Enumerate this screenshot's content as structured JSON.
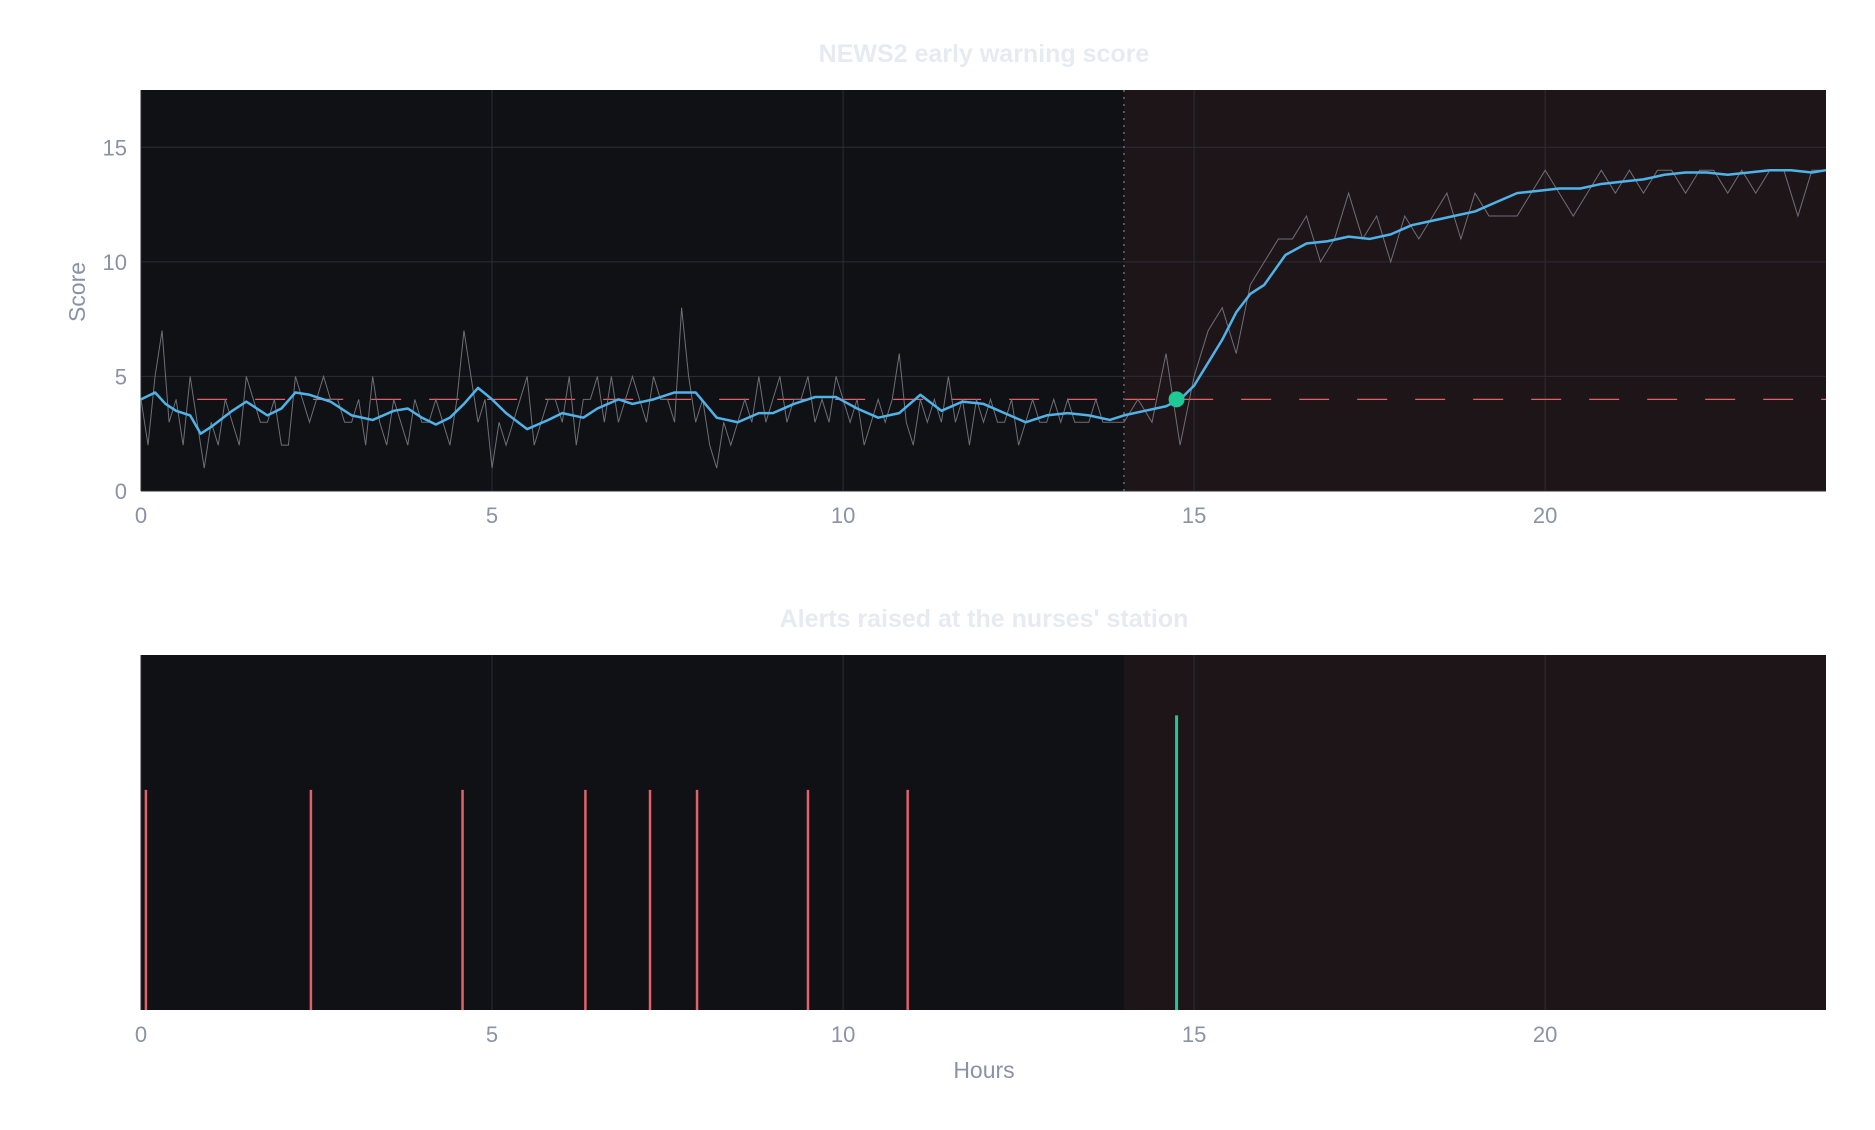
{
  "colors": {
    "plot_bg": "#0f1115",
    "shade_bg": "#1e1519",
    "grid": "#2a2e36",
    "smoothed": "#4fb3ea",
    "raw": "#6d6f76",
    "threshold": "#e36068",
    "alert_false": "#e36068",
    "alert_true": "#1fc996",
    "marker": "#1fc996",
    "text": "#8a93a6",
    "title": "#e6ebf2"
  },
  "chart_data": [
    {
      "type": "line",
      "title": "NEWS2 early warning score",
      "xlabel": "",
      "ylabel": "Score",
      "xlim": [
        0,
        24
      ],
      "ylim": [
        0,
        17.5
      ],
      "x_ticks": [
        0,
        5,
        10,
        15,
        20
      ],
      "y_ticks": [
        0,
        5,
        10,
        15
      ],
      "grid": true,
      "shaded_region_x": [
        14,
        24
      ],
      "threshold": 4,
      "marker_point": {
        "x": 14.75,
        "y": 4
      },
      "series": [
        {
          "role": "smoothed",
          "x": [
            0,
            0.2,
            0.35,
            0.5,
            0.7,
            0.85,
            1.0,
            1.3,
            1.5,
            1.8,
            2.0,
            2.2,
            2.4,
            2.7,
            3.0,
            3.3,
            3.6,
            3.8,
            4.0,
            4.2,
            4.4,
            4.6,
            4.8,
            5.0,
            5.2,
            5.5,
            5.8,
            6.0,
            6.3,
            6.5,
            6.8,
            7.0,
            7.3,
            7.6,
            7.9,
            8.2,
            8.5,
            8.8,
            9.0,
            9.3,
            9.6,
            9.9,
            10.2,
            10.5,
            10.8,
            11.1,
            11.4,
            11.7,
            12.0,
            12.3,
            12.6,
            12.9,
            13.2,
            13.5,
            13.8,
            14.0,
            14.3,
            14.6,
            14.8,
            15.0,
            15.2,
            15.4,
            15.6,
            15.8,
            16.0,
            16.3,
            16.6,
            16.9,
            17.2,
            17.5,
            17.8,
            18.1,
            18.4,
            18.7,
            19.0,
            19.3,
            19.6,
            19.9,
            20.2,
            20.5,
            20.8,
            21.1,
            21.4,
            21.7,
            22.0,
            22.3,
            22.6,
            22.9,
            23.2,
            23.5,
            23.8,
            24.0
          ],
          "y": [
            4.0,
            4.3,
            3.8,
            3.5,
            3.3,
            2.5,
            2.8,
            3.5,
            3.9,
            3.3,
            3.6,
            4.3,
            4.2,
            3.9,
            3.3,
            3.1,
            3.5,
            3.6,
            3.2,
            2.9,
            3.2,
            3.8,
            4.5,
            4.0,
            3.4,
            2.7,
            3.1,
            3.4,
            3.2,
            3.6,
            4.0,
            3.8,
            4.0,
            4.3,
            4.3,
            3.2,
            3.0,
            3.4,
            3.4,
            3.8,
            4.1,
            4.1,
            3.6,
            3.2,
            3.4,
            4.2,
            3.5,
            3.9,
            3.8,
            3.4,
            3.0,
            3.3,
            3.4,
            3.3,
            3.1,
            3.3,
            3.5,
            3.7,
            4.0,
            4.6,
            5.6,
            6.6,
            7.8,
            8.6,
            9.0,
            10.3,
            10.8,
            10.9,
            11.1,
            11.0,
            11.2,
            11.6,
            11.8,
            12.0,
            12.2,
            12.6,
            13.0,
            13.1,
            13.2,
            13.2,
            13.4,
            13.5,
            13.6,
            13.8,
            13.9,
            13.9,
            13.8,
            13.9,
            14.0,
            14.0,
            13.9,
            14.0
          ]
        },
        {
          "role": "raw",
          "x": [
            0,
            0.1,
            0.2,
            0.3,
            0.4,
            0.5,
            0.6,
            0.7,
            0.8,
            0.9,
            1.0,
            1.1,
            1.2,
            1.3,
            1.4,
            1.5,
            1.6,
            1.7,
            1.8,
            1.9,
            2.0,
            2.1,
            2.2,
            2.3,
            2.4,
            2.5,
            2.6,
            2.7,
            2.8,
            2.9,
            3.0,
            3.1,
            3.2,
            3.3,
            3.4,
            3.5,
            3.6,
            3.7,
            3.8,
            3.9,
            4.0,
            4.1,
            4.2,
            4.3,
            4.4,
            4.5,
            4.6,
            4.7,
            4.8,
            4.9,
            5.0,
            5.1,
            5.2,
            5.3,
            5.4,
            5.5,
            5.6,
            5.7,
            5.8,
            5.9,
            6.0,
            6.1,
            6.2,
            6.3,
            6.4,
            6.5,
            6.6,
            6.7,
            6.8,
            6.9,
            7.0,
            7.1,
            7.2,
            7.3,
            7.4,
            7.5,
            7.6,
            7.7,
            7.8,
            7.9,
            8.0,
            8.1,
            8.2,
            8.3,
            8.4,
            8.5,
            8.6,
            8.7,
            8.8,
            8.9,
            9.0,
            9.1,
            9.2,
            9.3,
            9.4,
            9.5,
            9.6,
            9.7,
            9.8,
            9.9,
            10.0,
            10.1,
            10.2,
            10.3,
            10.4,
            10.5,
            10.6,
            10.7,
            10.8,
            10.9,
            11.0,
            11.1,
            11.2,
            11.3,
            11.4,
            11.5,
            11.6,
            11.7,
            11.8,
            11.9,
            12.0,
            12.1,
            12.2,
            12.3,
            12.4,
            12.5,
            12.6,
            12.7,
            12.8,
            12.9,
            13.0,
            13.1,
            13.2,
            13.3,
            13.4,
            13.5,
            13.6,
            13.7,
            13.8,
            13.9,
            14.0,
            14.2,
            14.4,
            14.6,
            14.8,
            15.0,
            15.2,
            15.4,
            15.6,
            15.8,
            16.0,
            16.2,
            16.4,
            16.6,
            16.8,
            17.0,
            17.2,
            17.4,
            17.6,
            17.8,
            18.0,
            18.2,
            18.4,
            18.6,
            18.8,
            19.0,
            19.2,
            19.4,
            19.6,
            19.8,
            20.0,
            20.2,
            20.4,
            20.6,
            20.8,
            21.0,
            21.2,
            21.4,
            21.6,
            21.8,
            22.0,
            22.2,
            22.4,
            22.6,
            22.8,
            23.0,
            23.2,
            23.4,
            23.6,
            23.8,
            24.0
          ],
          "y": [
            4,
            2,
            5,
            7,
            3,
            4,
            2,
            5,
            3,
            1,
            3,
            2,
            4,
            3,
            2,
            5,
            4,
            3,
            3,
            4,
            2,
            2,
            5,
            4,
            3,
            4,
            5,
            4,
            4,
            3,
            3,
            4,
            2,
            5,
            3,
            2,
            4,
            3,
            2,
            4,
            3,
            3,
            4,
            3,
            2,
            4,
            7,
            5,
            3,
            4,
            1,
            3,
            2,
            3,
            4,
            5,
            2,
            3,
            4,
            4,
            3,
            5,
            2,
            4,
            4,
            5,
            3,
            5,
            3,
            4,
            5,
            4,
            3,
            5,
            4,
            4,
            3,
            8,
            5,
            3,
            4,
            2,
            1,
            3,
            2,
            3,
            4,
            3,
            5,
            3,
            4,
            5,
            3,
            4,
            4,
            5,
            3,
            4,
            3,
            5,
            4,
            3,
            4,
            2,
            3,
            4,
            3,
            4,
            6,
            3,
            2,
            4,
            3,
            4,
            3,
            5,
            3,
            4,
            2,
            4,
            3,
            4,
            3,
            3,
            4,
            2,
            3,
            4,
            3,
            3,
            4,
            3,
            4,
            3,
            3,
            3,
            4,
            3,
            3,
            3,
            3,
            4,
            3,
            6,
            2,
            5,
            7,
            8,
            6,
            9,
            10,
            11,
            11,
            12,
            10,
            11,
            13,
            11,
            12,
            10,
            12,
            11,
            12,
            13,
            11,
            13,
            12,
            12,
            12,
            13,
            14,
            13,
            12,
            13,
            14,
            13,
            14,
            13,
            14,
            14,
            13,
            14,
            14,
            13,
            14,
            13,
            14,
            14,
            12,
            14,
            14
          ]
        }
      ]
    },
    {
      "type": "event",
      "title": "Alerts raised at the nurses' station",
      "xlabel": "Hours",
      "ylabel": "",
      "xlim": [
        0,
        24
      ],
      "x_ticks": [
        0,
        5,
        10,
        15,
        20
      ],
      "grid": true,
      "shaded_region_x": [
        14,
        24
      ],
      "events": [
        {
          "x": 0.07,
          "kind": "false",
          "height": 0.62
        },
        {
          "x": 2.42,
          "kind": "false",
          "height": 0.62
        },
        {
          "x": 4.58,
          "kind": "false",
          "height": 0.62
        },
        {
          "x": 6.33,
          "kind": "false",
          "height": 0.62
        },
        {
          "x": 7.25,
          "kind": "false",
          "height": 0.62
        },
        {
          "x": 7.92,
          "kind": "false",
          "height": 0.62
        },
        {
          "x": 9.5,
          "kind": "false",
          "height": 0.62
        },
        {
          "x": 10.92,
          "kind": "false",
          "height": 0.62
        },
        {
          "x": 14.75,
          "kind": "true",
          "height": 0.83
        }
      ]
    }
  ]
}
